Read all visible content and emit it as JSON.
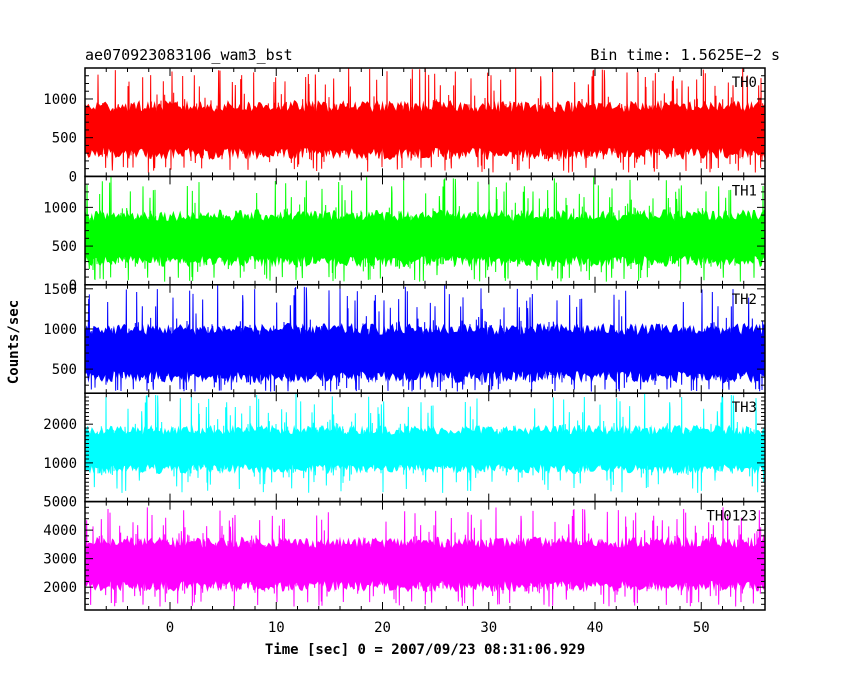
{
  "title_left": "ae070923083106_wam3_bst",
  "title_right": "Bin time: 1.5625E−2 s",
  "colors": {
    "TH0": "#ff0000",
    "TH1": "#00ff00",
    "TH2": "#0000ff",
    "TH3": "#00ffff",
    "TH0123": "#ff00ff"
  },
  "chart_data": {
    "type": "line",
    "xlabel": "Time [sec] 0 = 2007/09/23 08:31:06.929",
    "ylabel": "Counts/sec",
    "xlim": [
      -8,
      56
    ],
    "xticks": [
      0,
      10,
      20,
      30,
      40,
      50
    ],
    "x_start": -8,
    "x_end": 56,
    "bin_time": 0.015625,
    "grid": false,
    "panels": [
      {
        "name": "TH0",
        "ylim": [
          0,
          1400
        ],
        "yticks": [
          0,
          500,
          1000
        ],
        "mean": 600,
        "low": 120,
        "high": 1150,
        "peak": 1400
      },
      {
        "name": "TH1",
        "ylim": [
          0,
          1400
        ],
        "yticks": [
          0,
          500,
          1000
        ],
        "mean": 600,
        "low": 100,
        "high": 1100,
        "peak": 1400
      },
      {
        "name": "TH2",
        "ylim": [
          200,
          1550
        ],
        "yticks": [
          500,
          1000,
          1500
        ],
        "mean": 700,
        "low": 250,
        "high": 1250,
        "peak": 1550
      },
      {
        "name": "TH3",
        "ylim": [
          0,
          2800
        ],
        "yticks": [
          1000,
          2000
        ],
        "mean": 1350,
        "low": 550,
        "high": 2250,
        "peak": 2800
      },
      {
        "name": "TH0123",
        "ylim": [
          1200,
          5000
        ],
        "yticks": [
          2000,
          3000,
          4000,
          5000
        ],
        "mean": 2800,
        "low": 1500,
        "high": 4100,
        "peak": 4800
      }
    ]
  }
}
